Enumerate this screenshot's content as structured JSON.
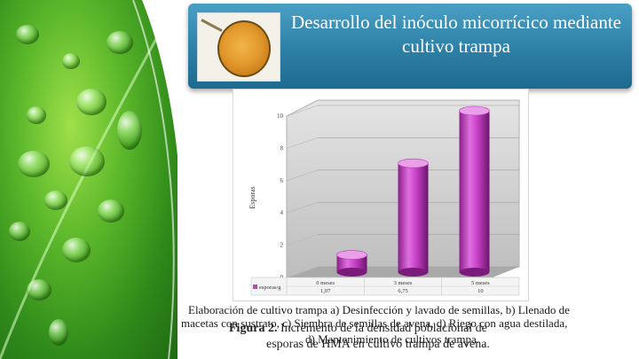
{
  "slide": {
    "title": "Desarrollo del inóculo micorrícico mediante cultivo trampa",
    "caption": {
      "line1": "Elaboración de cultivo trampa a) Desinfección y lavado de semillas, b) Llenado de",
      "line2": "macetas con sustrato, c) Siembra de semillas de avena, d) Riego con agua destilada,",
      "line3": "d) Mantenimiento de cultivos trampa.",
      "figure_label": "Figura 2.",
      "figure_line1": "Incremento de la densidad poblacional de",
      "figure_line2": "esporas de HMA en cultivo trampa de avena."
    }
  },
  "icons": {
    "leaf": "leaf-background-icon",
    "spore": "spore-microscope-icon"
  },
  "colors": {
    "title_bg": "#2d7fa6",
    "bar_color": "#c840c8",
    "leaf_green": "#5cb82a"
  },
  "chart_data": {
    "type": "bar",
    "categories": [
      "0 meses",
      "3 meses",
      "5 meses"
    ],
    "series": [
      {
        "name": "esporas/g",
        "values": [
          1.07,
          6.75,
          10
        ]
      }
    ],
    "table_values": [
      "1,07",
      "6,75",
      "10"
    ],
    "ylabel": "Esporas",
    "ylim": [
      0,
      10
    ],
    "yticks": [
      0,
      2,
      4,
      6,
      8,
      10
    ],
    "grid": true,
    "style": "3d-cylinder",
    "legend_placement": "bottom-table"
  }
}
